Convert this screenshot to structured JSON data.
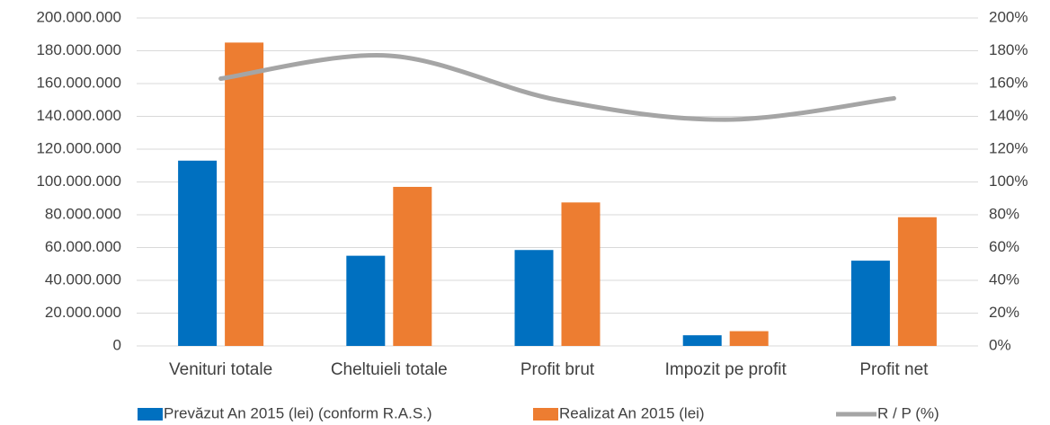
{
  "chart_data": {
    "type": "bar_line",
    "categories": [
      "Venituri totale",
      "Cheltuieli totale",
      "Profit brut",
      "Impozit pe profit",
      "Profit net"
    ],
    "series": [
      {
        "name": "Prevăzut An 2015 (lei) (conform R.A.S.)",
        "color": "#0070c0",
        "type": "bar",
        "values": [
          113000000,
          55000000,
          58500000,
          6500000,
          52000000
        ]
      },
      {
        "name": "Realizat An 2015 (lei)",
        "color": "#ed7d31",
        "type": "bar",
        "values": [
          185000000,
          97000000,
          87500000,
          9000000,
          78500000
        ]
      },
      {
        "name": "R / P (%)",
        "color": "#a5a5a5",
        "type": "line",
        "axis": "y2",
        "values": [
          163,
          177,
          150,
          138,
          151
        ]
      }
    ],
    "ylim": [
      0,
      200000000
    ],
    "yticks": [
      0,
      {
        "value": 20000000,
        "label": "20.000.000"
      },
      {
        "value": 40000000,
        "label": "40.000.000"
      },
      {
        "value": 60000000,
        "label": "60.000.000"
      },
      {
        "value": 80000000,
        "label": "80.000.000"
      },
      {
        "value": 100000000,
        "label": "100.000.000"
      },
      {
        "value": 120000000,
        "label": "120.000.000"
      },
      {
        "value": 140000000,
        "label": "140.000.000"
      },
      {
        "value": 160000000,
        "label": "160.000.000"
      },
      {
        "value": 180000000,
        "label": "180.000.000"
      },
      {
        "value": 200000000,
        "label": "200.000.000"
      }
    ],
    "y2lim": [
      0,
      200
    ],
    "y2ticks": [
      {
        "value": 0,
        "label": "0%"
      },
      {
        "value": 20,
        "label": "20%"
      },
      {
        "value": 40,
        "label": "40%"
      },
      {
        "value": 60,
        "label": "60%"
      },
      {
        "value": 80,
        "label": "80%"
      },
      {
        "value": 100,
        "label": "100%"
      },
      {
        "value": 120,
        "label": "120%"
      },
      {
        "value": 140,
        "label": "140%"
      },
      {
        "value": 160,
        "label": "160%"
      },
      {
        "value": 180,
        "label": "180%"
      },
      {
        "value": 200,
        "label": "200%"
      }
    ],
    "grid": true,
    "legend": "bottom"
  }
}
